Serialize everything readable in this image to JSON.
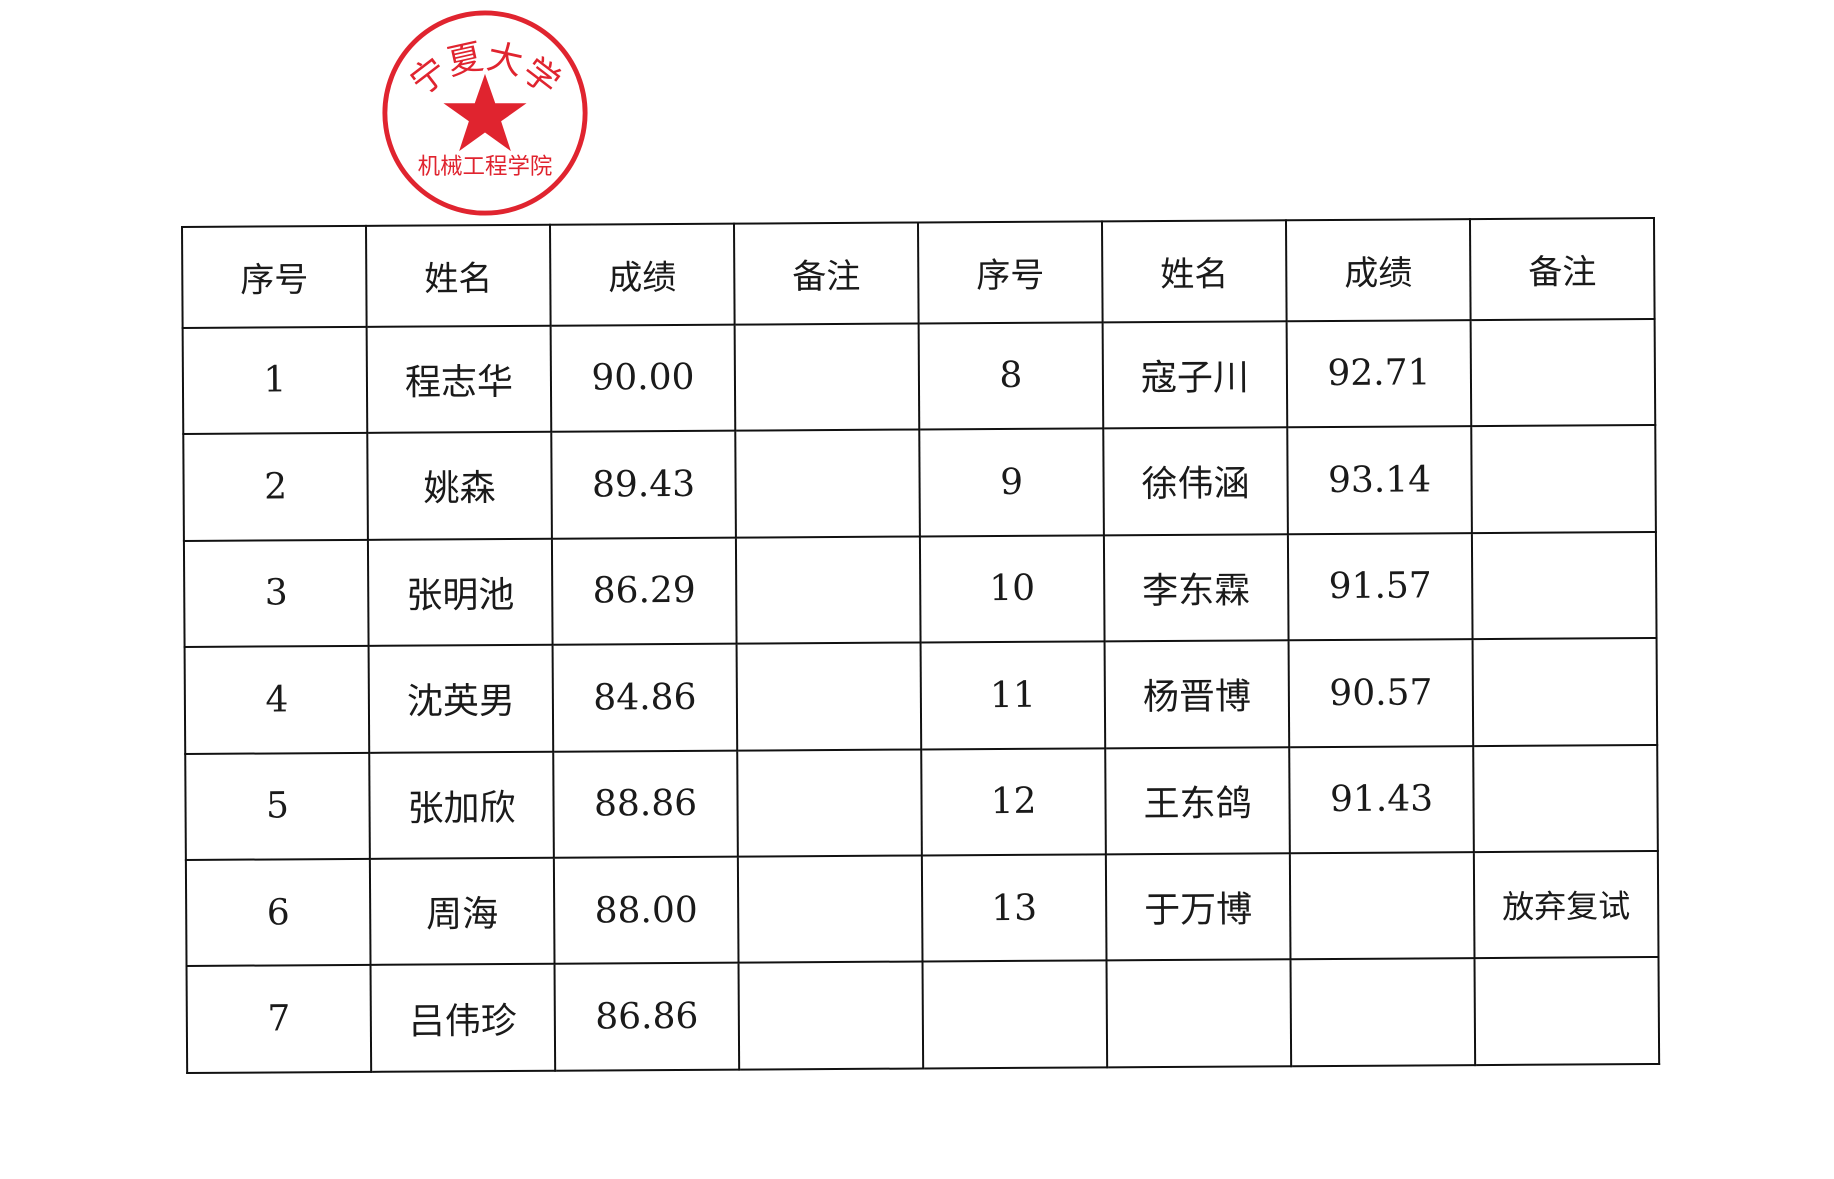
{
  "headers": [
    "序号",
    "姓名",
    "成绩",
    "备注",
    "序号",
    "姓名",
    "成绩",
    "备注"
  ],
  "rows": [
    {
      "left": {
        "no": "1",
        "name": "程志华",
        "score": "90.00",
        "note": ""
      },
      "right": {
        "no": "8",
        "name": "寇子川",
        "score": "92.71",
        "note": ""
      }
    },
    {
      "left": {
        "no": "2",
        "name": "姚森",
        "score": "89.43",
        "note": ""
      },
      "right": {
        "no": "9",
        "name": "徐伟涵",
        "score": "93.14",
        "note": ""
      }
    },
    {
      "left": {
        "no": "3",
        "name": "张明池",
        "score": "86.29",
        "note": ""
      },
      "right": {
        "no": "10",
        "name": "李东霖",
        "score": "91.57",
        "note": ""
      }
    },
    {
      "left": {
        "no": "4",
        "name": "沈英男",
        "score": "84.86",
        "note": ""
      },
      "right": {
        "no": "11",
        "name": "杨晋博",
        "score": "90.57",
        "note": ""
      }
    },
    {
      "left": {
        "no": "5",
        "name": "张加欣",
        "score": "88.86",
        "note": ""
      },
      "right": {
        "no": "12",
        "name": "王东鸽",
        "score": "91.43",
        "note": ""
      }
    },
    {
      "left": {
        "no": "6",
        "name": "周海",
        "score": "88.00",
        "note": ""
      },
      "right": {
        "no": "13",
        "name": "于万博",
        "score": "",
        "note": "放弃复试"
      }
    },
    {
      "left": {
        "no": "7",
        "name": "吕伟珍",
        "score": "86.86",
        "note": ""
      },
      "right": {
        "no": "",
        "name": "",
        "score": "",
        "note": ""
      }
    }
  ],
  "stamp": {
    "text_top": "宁夏大学",
    "text_bottom": "机械工程学院",
    "color": "#e0242f"
  }
}
